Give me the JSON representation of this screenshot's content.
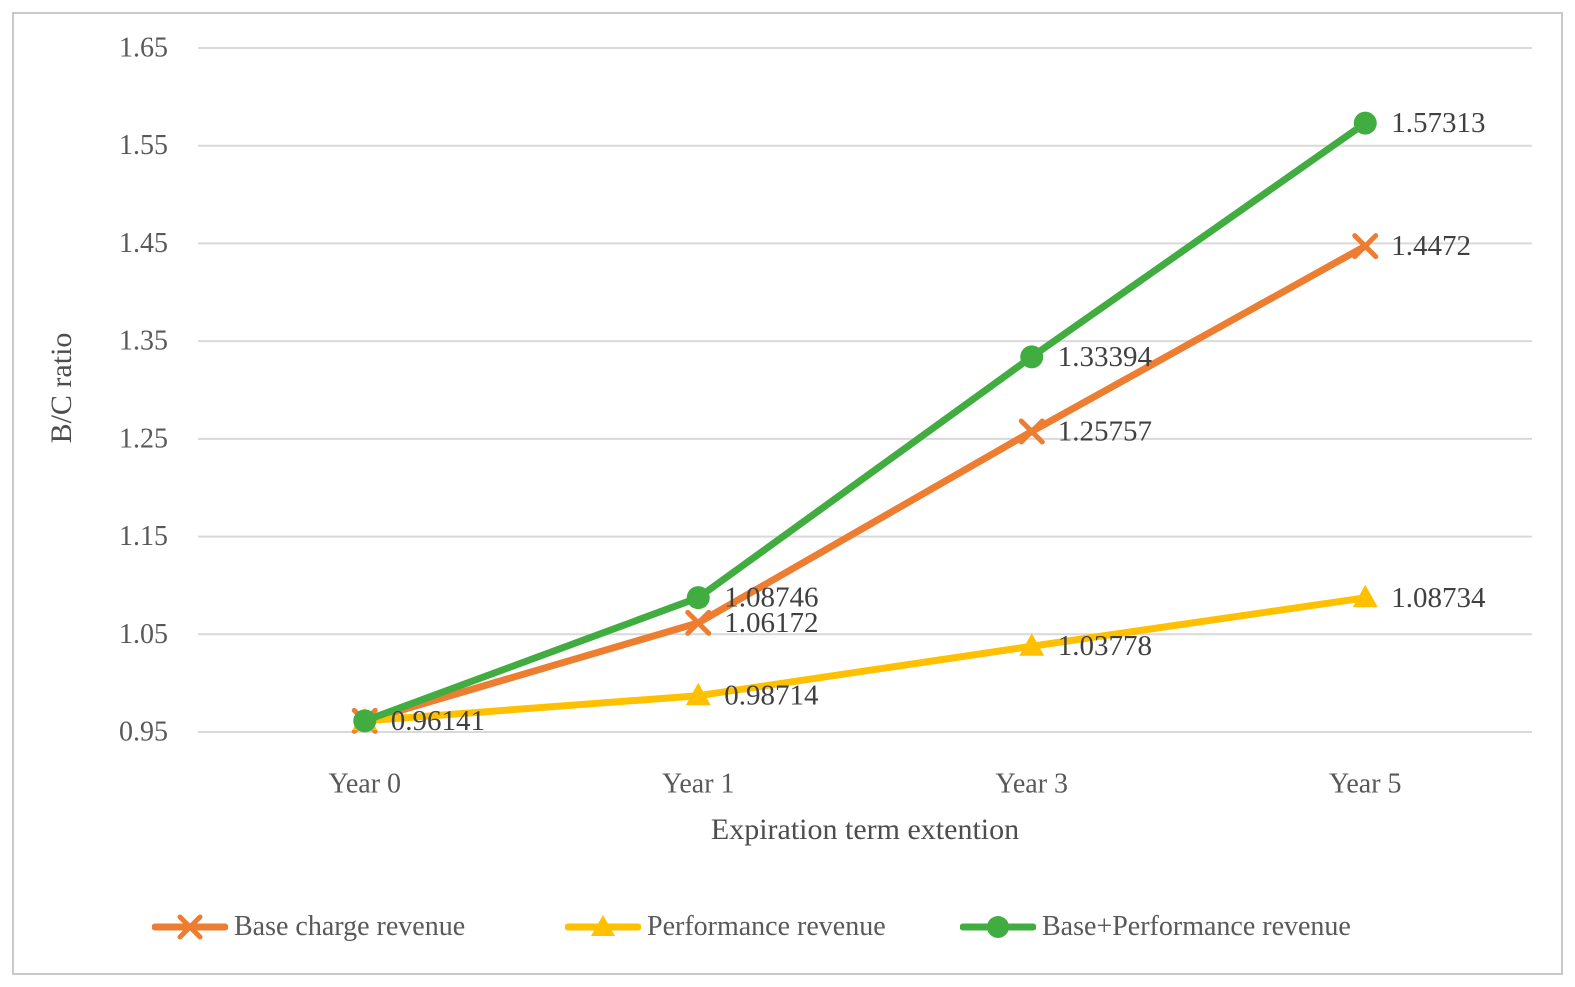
{
  "chart_data": {
    "type": "line",
    "title": "",
    "xlabel": "Expiration term extention",
    "ylabel": "B/C ratio",
    "categories": [
      "Year 0",
      "Year 1",
      "Year 3",
      "Year 5"
    ],
    "ylim": [
      0.95,
      1.65
    ],
    "y_ticks": [
      0.95,
      1.05,
      1.15,
      1.25,
      1.35,
      1.45,
      1.55,
      1.65
    ],
    "y_tick_labels": [
      "0.95",
      "1.05",
      "1.15",
      "1.25",
      "1.35",
      "1.45",
      "1.55",
      "1.65"
    ],
    "grid": "horizontal-only",
    "legend_position": "bottom",
    "series": [
      {
        "name": "Base charge revenue",
        "color": "#ED7D31",
        "marker": "x",
        "values": [
          0.96141,
          1.06172,
          1.25757,
          1.4472
        ],
        "labels": [
          null,
          "1.06172",
          "1.25757",
          "1.4472"
        ]
      },
      {
        "name": "Performance revenue",
        "color": "#FFC000",
        "marker": "triangle",
        "values": [
          0.96141,
          0.98714,
          1.03778,
          1.08734
        ],
        "labels": [
          null,
          "0.98714",
          "1.03778",
          "1.08734"
        ]
      },
      {
        "name": "Base+Performance revenue",
        "color": "#41AD41",
        "marker": "circle",
        "values": [
          0.96141,
          1.08746,
          1.33394,
          1.57313
        ],
        "labels": [
          "0.96141",
          "1.08746",
          "1.33394",
          "1.57313"
        ]
      }
    ]
  },
  "style": {
    "grid_color": "#D9D9D9",
    "tick_text_color": "#595959",
    "data_label_color": "#404040",
    "border_color": "#C9C9C9"
  }
}
